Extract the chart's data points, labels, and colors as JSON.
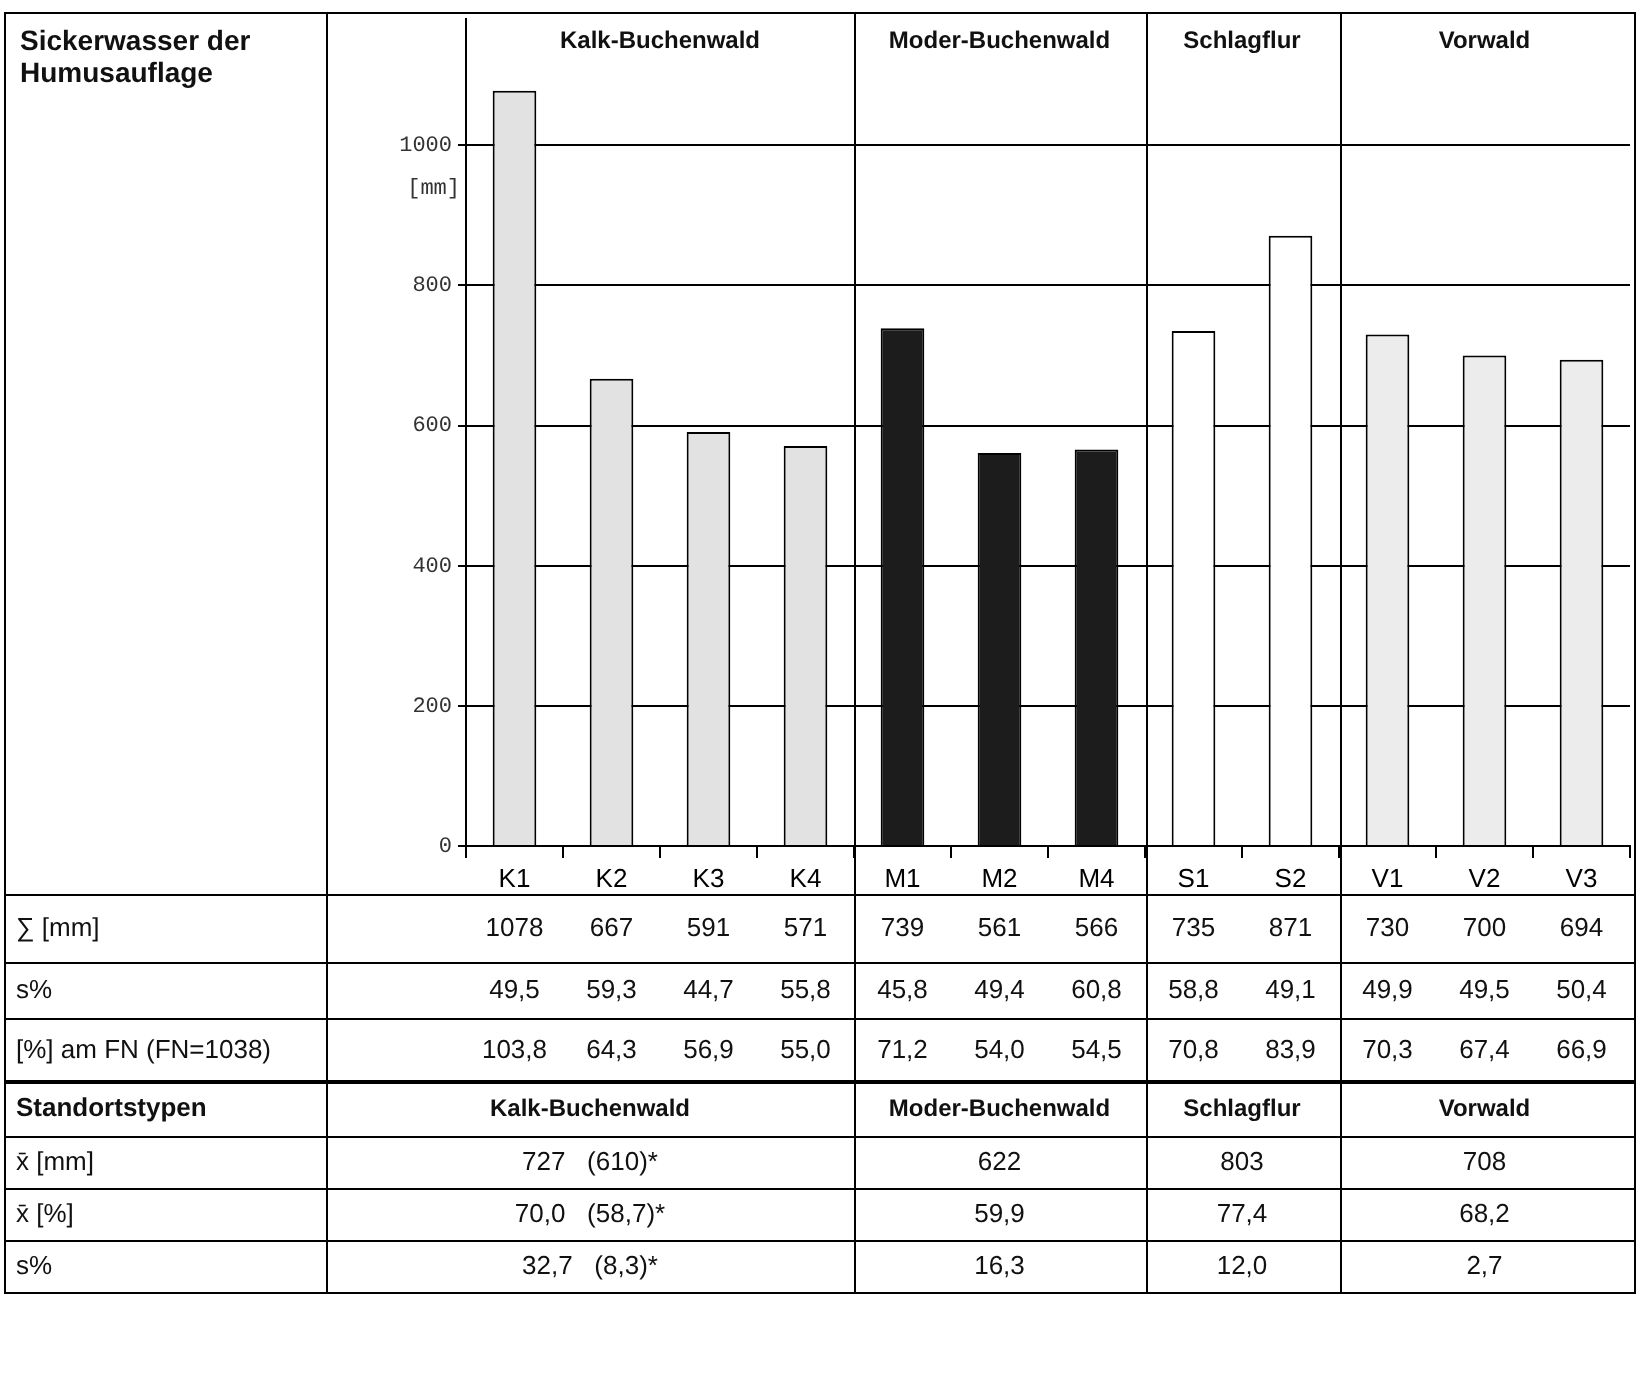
{
  "chart_data": {
    "type": "bar",
    "title": "Sickerwasser der Humusauflage",
    "ylabel": "[mm]",
    "categories": [
      "K1",
      "K2",
      "K3",
      "K4",
      "M1",
      "M2",
      "M4",
      "S1",
      "S2",
      "V1",
      "V2",
      "V3"
    ],
    "values": [
      1078,
      667,
      591,
      571,
      739,
      561,
      566,
      735,
      871,
      730,
      700,
      694
    ],
    "colors": [
      "#e2e2e2",
      "#e2e2e2",
      "#e2e2e2",
      "#e2e2e2",
      "#1c1c1c",
      "#1c1c1c",
      "#1c1c1c",
      "#ffffff",
      "#ffffff",
      "#ececec",
      "#ececec",
      "#ececec"
    ],
    "ylim": [
      0,
      1180
    ],
    "yticks": [
      0,
      200,
      400,
      600,
      800,
      1000
    ],
    "grid": "y",
    "data_labels": true,
    "annotations": [
      "Kalk-Buchenwald",
      "Moder-Buchenwald",
      "Schlagflur",
      "Vorwald",
      "∑ [mm]",
      "s%",
      "49,5",
      "59,3",
      "44,7",
      "55,8",
      "45,8",
      "49,4",
      "60,8",
      "58,8",
      "49,1",
      "49,9",
      "49,5",
      "50,4",
      "[%] am FN (FN=1038)",
      "103,8",
      "64,3",
      "56,9",
      "55,0",
      "71,2",
      "54,0",
      "54,5",
      "70,8",
      "83,9",
      "70,3",
      "67,4",
      "66,9",
      "Standortstypen",
      "Kalk-Buchenwald",
      "Moder-Buchenwald",
      "Schlagflur",
      "Vorwald",
      "x̄ [mm]",
      "727   (610)*",
      "622",
      "803",
      "708",
      "x̄ [%]",
      "70,0   (58,7)*",
      "59,9",
      "77,4",
      "68,2",
      "s%",
      "32,7   (8,3)*",
      "16,3",
      "12,0",
      "2,7"
    ]
  }
}
